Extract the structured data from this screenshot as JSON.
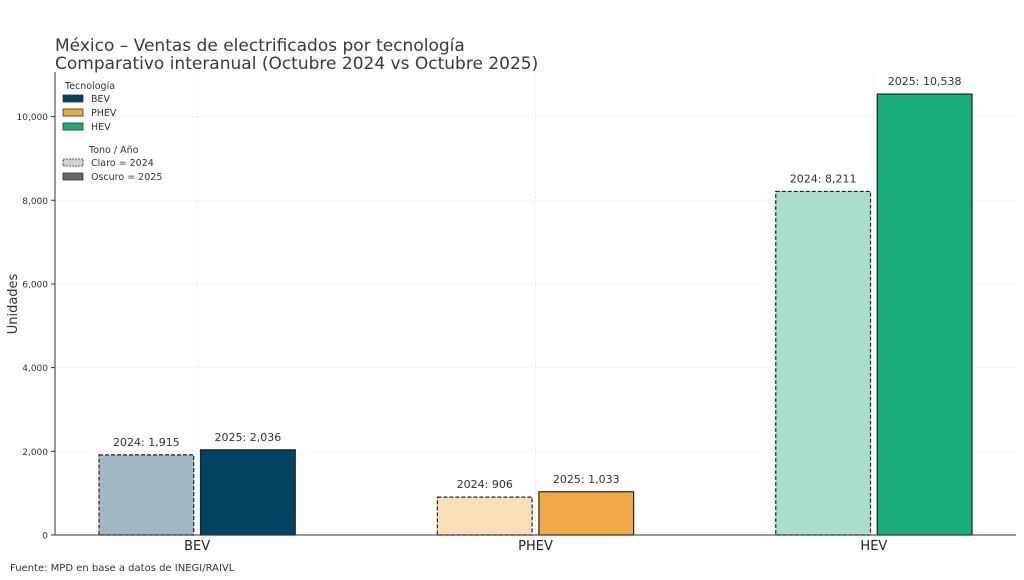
{
  "chart_data": {
    "type": "bar",
    "title": "México – Ventas de electrificados por tecnología",
    "subtitle": "Comparativo interanual (Octubre 2024 vs Octubre 2025)",
    "xlabel": "",
    "ylabel": "Unidades",
    "categories": [
      "BEV",
      "PHEV",
      "HEV"
    ],
    "series": [
      {
        "name": "2024",
        "values": [
          1915,
          906,
          8211
        ],
        "labels": [
          "2024: 1,915",
          "2024: 906",
          "2024: 8,211"
        ],
        "style": "dashed-light"
      },
      {
        "name": "2025",
        "values": [
          2036,
          1033,
          10538
        ],
        "labels": [
          "2025: 2,036",
          "2025: 1,033",
          "2025: 10,538"
        ],
        "style": "solid-dark"
      }
    ],
    "colors": {
      "BEV": {
        "light": "#a0b8c4",
        "dark": "#024363"
      },
      "PHEV": {
        "light": "#f8dfb8",
        "dark": "#eeaa45"
      },
      "HEV": {
        "light": "#a7dfcc",
        "dark": "#18ad7b"
      }
    },
    "ylim": [
      0,
      11065
    ],
    "yticks": [
      0,
      2000,
      4000,
      6000,
      8000,
      10000
    ],
    "ytick_labels": [
      "0",
      "2,000",
      "4,000",
      "6,000",
      "8,000",
      "10,000"
    ],
    "grid": true,
    "legend": {
      "placement": "top-left",
      "title": "Tecnología",
      "entries": [
        {
          "label": "BEV",
          "color": "#024363"
        },
        {
          "label": "PHEV",
          "color": "#eeaa45"
        },
        {
          "label": "HEV",
          "color": "#18ad7b"
        }
      ],
      "tone_title": "Tono / Año",
      "tone_entries": [
        {
          "label": "Claro = 2024",
          "color": "#d3d3d3",
          "dashed": true
        },
        {
          "label": "Oscuro = 2025",
          "color": "#666666",
          "dashed": false
        }
      ]
    },
    "source": "Fuente: MPD en base a datos de INEGI/RAIVL"
  }
}
